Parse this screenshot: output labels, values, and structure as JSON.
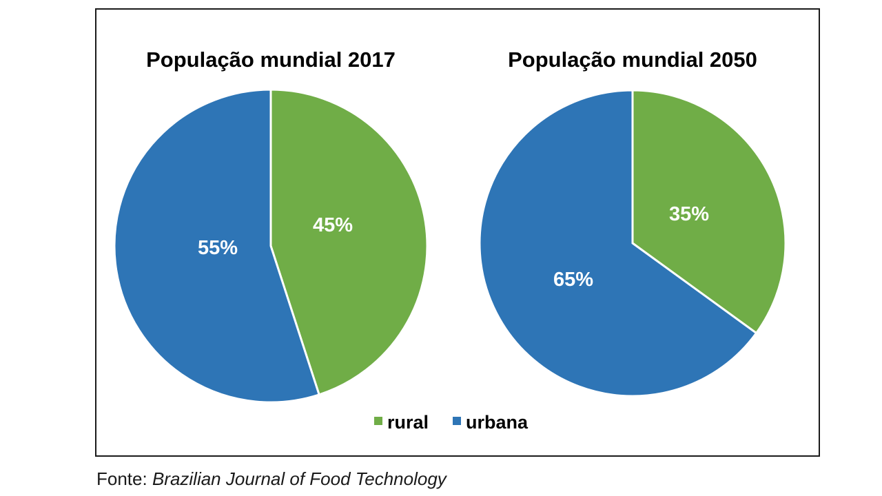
{
  "chart_data": [
    {
      "type": "pie",
      "title": "População mundial 2017",
      "categories": [
        "rural",
        "urbana"
      ],
      "values": [
        45,
        55
      ],
      "labels": [
        "45%",
        "55%"
      ]
    },
    {
      "type": "pie",
      "title": "População mundial 2050",
      "categories": [
        "rural",
        "urbana"
      ],
      "values": [
        35,
        65
      ],
      "labels": [
        "35%",
        "65%"
      ]
    }
  ],
  "legend": [
    {
      "name": "rural",
      "color": "#70ad47"
    },
    {
      "name": "urbana",
      "color": "#2e75b6"
    }
  ],
  "colors": {
    "rural": "#70ad47",
    "urbana": "#2e75b6"
  },
  "source": {
    "prefix": "Fonte: ",
    "name": "Brazilian Journal of Food Technology"
  }
}
